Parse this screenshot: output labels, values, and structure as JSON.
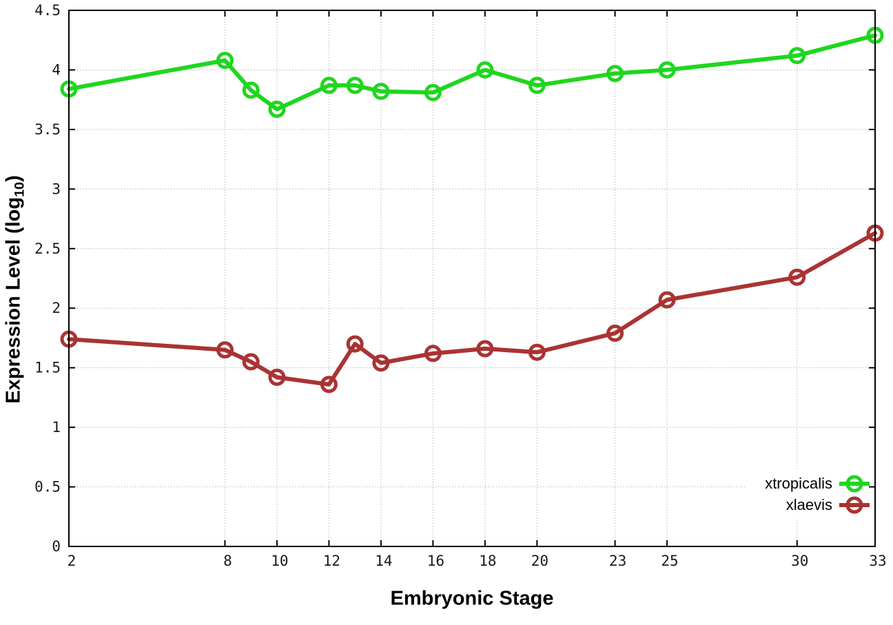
{
  "chart_data": {
    "type": "line",
    "title": "",
    "xlabel": "Embryonic Stage",
    "ylabel": {
      "pre": "Expression Level (log",
      "sub": "10",
      "post": ")"
    },
    "xlim": [
      2,
      33
    ],
    "ylim": [
      0,
      4.5
    ],
    "xticks": [
      2,
      8,
      10,
      12,
      14,
      16,
      18,
      20,
      23,
      25,
      30,
      33
    ],
    "yticks": [
      0,
      0.5,
      1,
      1.5,
      2,
      2.5,
      3,
      3.5,
      4,
      4.5
    ],
    "grid": true,
    "grid_color": "#b8b8b8",
    "frame_color": "#000000",
    "tick_label_color": "#1a1a1a",
    "legend_position": "inside-bottom-right",
    "x": [
      2,
      8,
      9,
      10,
      12,
      13,
      14,
      16,
      18,
      20,
      23,
      25,
      30,
      33
    ],
    "series": [
      {
        "name": "xtropicalis",
        "color": "#1fd61f",
        "marker": "open-circle",
        "values": [
          3.84,
          4.08,
          3.83,
          3.67,
          3.87,
          3.87,
          3.82,
          3.81,
          4.0,
          3.87,
          3.97,
          4.0,
          4.12,
          4.29
        ]
      },
      {
        "name": "xlaevis",
        "color": "#aa3333",
        "marker": "open-circle",
        "values": [
          1.74,
          1.65,
          1.55,
          1.42,
          1.36,
          1.7,
          1.54,
          1.62,
          1.66,
          1.63,
          1.79,
          2.07,
          2.26,
          2.63
        ]
      }
    ]
  }
}
